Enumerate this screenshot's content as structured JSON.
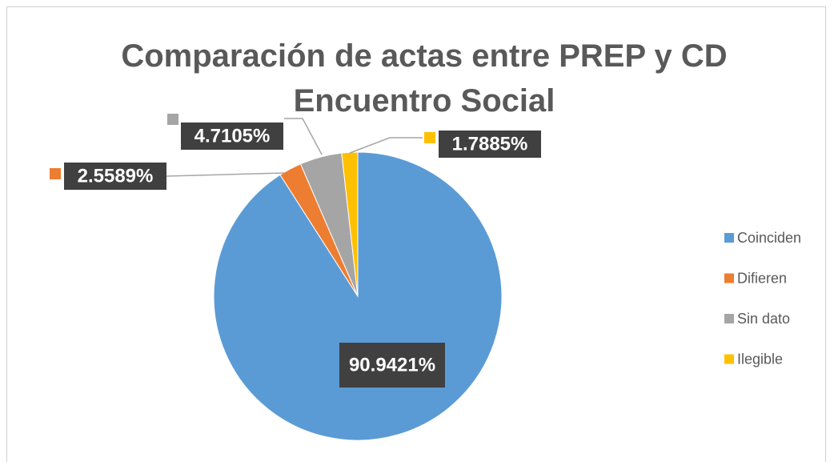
{
  "chart_data": {
    "type": "pie",
    "title": "Comparación de actas entre PREP y CD Encuentro Social",
    "categories": [
      "Coinciden",
      "Difieren",
      "Sin dato",
      "Ilegible"
    ],
    "values": [
      90.9421,
      2.5589,
      4.7105,
      1.7885
    ],
    "value_labels": [
      "90.9421%",
      "2.5589%",
      "4.7105%",
      "1.7885%"
    ],
    "colors": [
      "#5b9bd5",
      "#ed7d31",
      "#a5a5a5",
      "#ffc000"
    ],
    "legend": "right"
  }
}
